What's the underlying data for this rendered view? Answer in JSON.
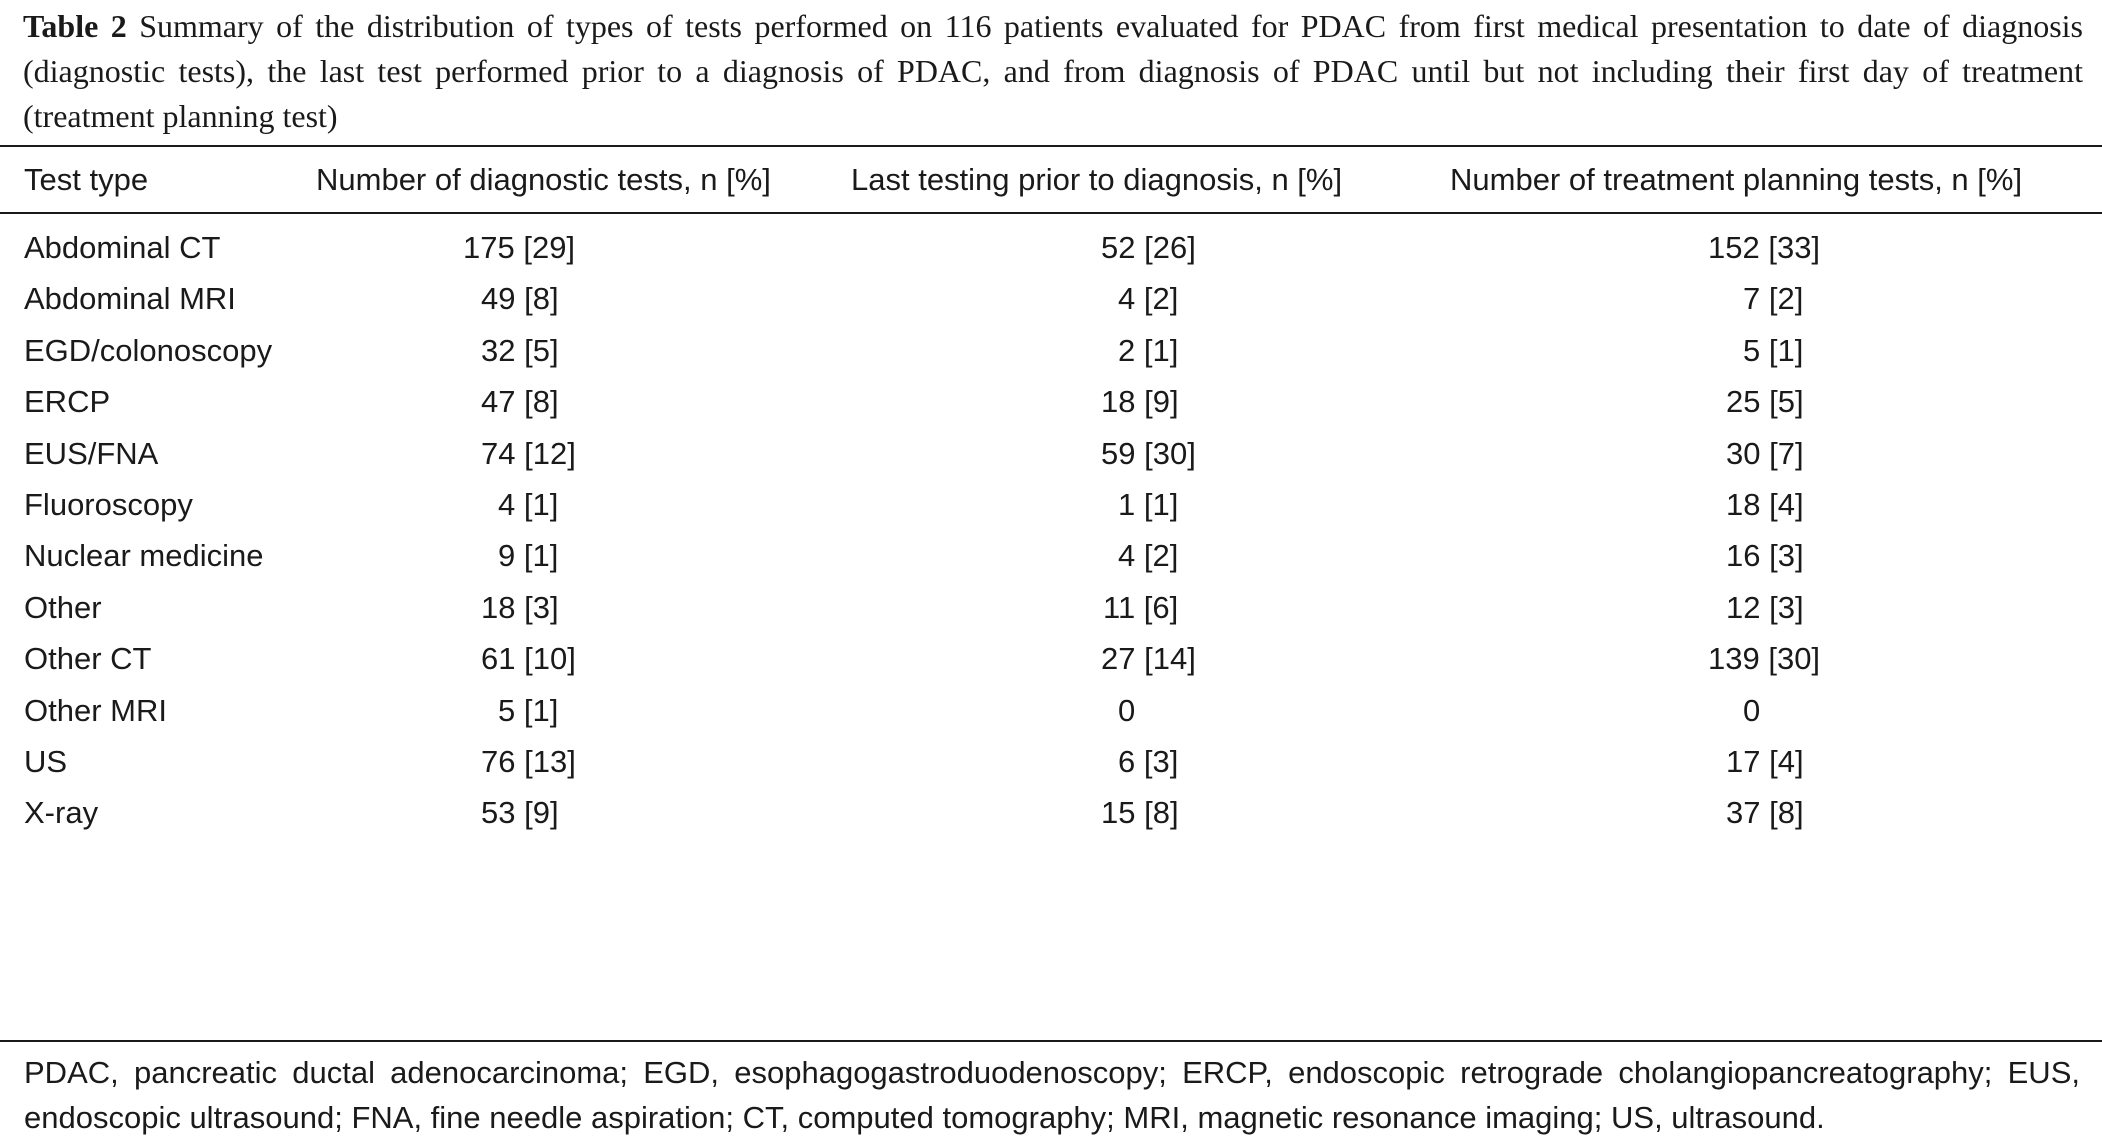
{
  "caption": {
    "label": "Table 2",
    "text": " Summary of the distribution of types of tests performed on 116 patients evaluated for PDAC from first medical presentation to date of diagnosis (diagnostic tests), the last test performed prior to a diagnosis of PDAC, and from diagnosis of PDAC until but not including their first day of treatment (treatment planning test)"
  },
  "table": {
    "headers": [
      "Test type",
      "Number of diagnostic tests, n [%]",
      "Last testing prior to diagnosis, n [%]",
      "Number of treatment planning tests, n [%]"
    ],
    "rows": [
      [
        "Abdominal CT",
        "175 [29]",
        "52 [26]",
        "152 [33]"
      ],
      [
        "Abdominal MRI",
        "49 [8]",
        "4 [2]",
        "7 [2]"
      ],
      [
        "EGD/colonoscopy",
        "32 [5]",
        "2 [1]",
        "5 [1]"
      ],
      [
        "ERCP",
        "47 [8]",
        "18 [9]",
        "25 [5]"
      ],
      [
        "EUS/FNA",
        "74 [12]",
        "59 [30]",
        "30 [7]"
      ],
      [
        "Fluoroscopy",
        "4 [1]",
        "1 [1]",
        "18 [4]"
      ],
      [
        "Nuclear medicine",
        "9 [1]",
        "4 [2]",
        "16 [3]"
      ],
      [
        "Other",
        "18 [3]",
        "11 [6]",
        "12 [3]"
      ],
      [
        "Other CT",
        "61 [10]",
        "27 [14]",
        "139 [30]"
      ],
      [
        "Other MRI",
        "5 [1]",
        "0",
        "0"
      ],
      [
        "US",
        "76 [13]",
        "6 [3]",
        "17 [4]"
      ],
      [
        "X-ray",
        "53 [9]",
        "15 [8]",
        "37 [8]"
      ]
    ]
  },
  "footnote": "PDAC, pancreatic ductal adenocarcinoma; EGD, esophagogastroduodenoscopy; ERCP, endoscopic retrograde cholangiopancreatography; EUS, endoscopic ultrasound; FNA, fine needle aspiration; CT, computed tomography; MRI, magnetic resonance imaging; US, ultrasound."
}
